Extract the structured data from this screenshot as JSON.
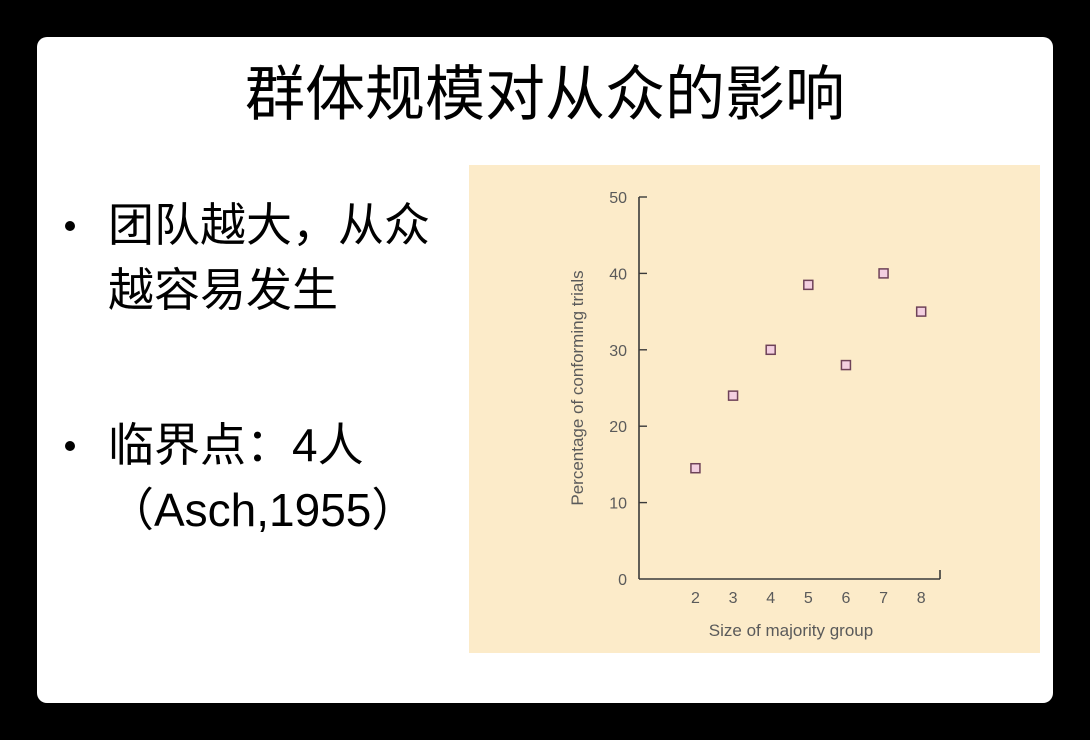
{
  "colors": {
    "page_background": "#000000",
    "slide_background": "#ffffff",
    "text": "#000000"
  },
  "slide": {
    "title": "群体规模对从众的影响",
    "bullets": [
      {
        "lines": [
          "团队越大，从众",
          "越容易发生"
        ]
      },
      {
        "lines": [
          "临界点：4人",
          "（Asch,1955）"
        ]
      }
    ]
  },
  "chart_data": {
    "type": "scatter",
    "xlabel": "Size of majority group",
    "ylabel": "Percentage of conforming trials",
    "x": [
      2,
      3,
      4,
      5,
      6,
      7,
      8
    ],
    "y": [
      14.5,
      24,
      30,
      38.5,
      28,
      40,
      35
    ],
    "xticks": [
      2,
      3,
      4,
      5,
      6,
      7,
      8
    ],
    "yticks": [
      0,
      10,
      20,
      30,
      40,
      50
    ],
    "xlim": [
      0.5,
      8.5
    ],
    "ylim": [
      0,
      50
    ],
    "grid": false,
    "legend": "none",
    "marker": "square",
    "colors": {
      "background": "#fcebc9",
      "marker_fill": "#f3cfe0",
      "marker_edge": "#6e4258",
      "axis": "#3a3a3a",
      "text": "#5a5a5a"
    }
  }
}
